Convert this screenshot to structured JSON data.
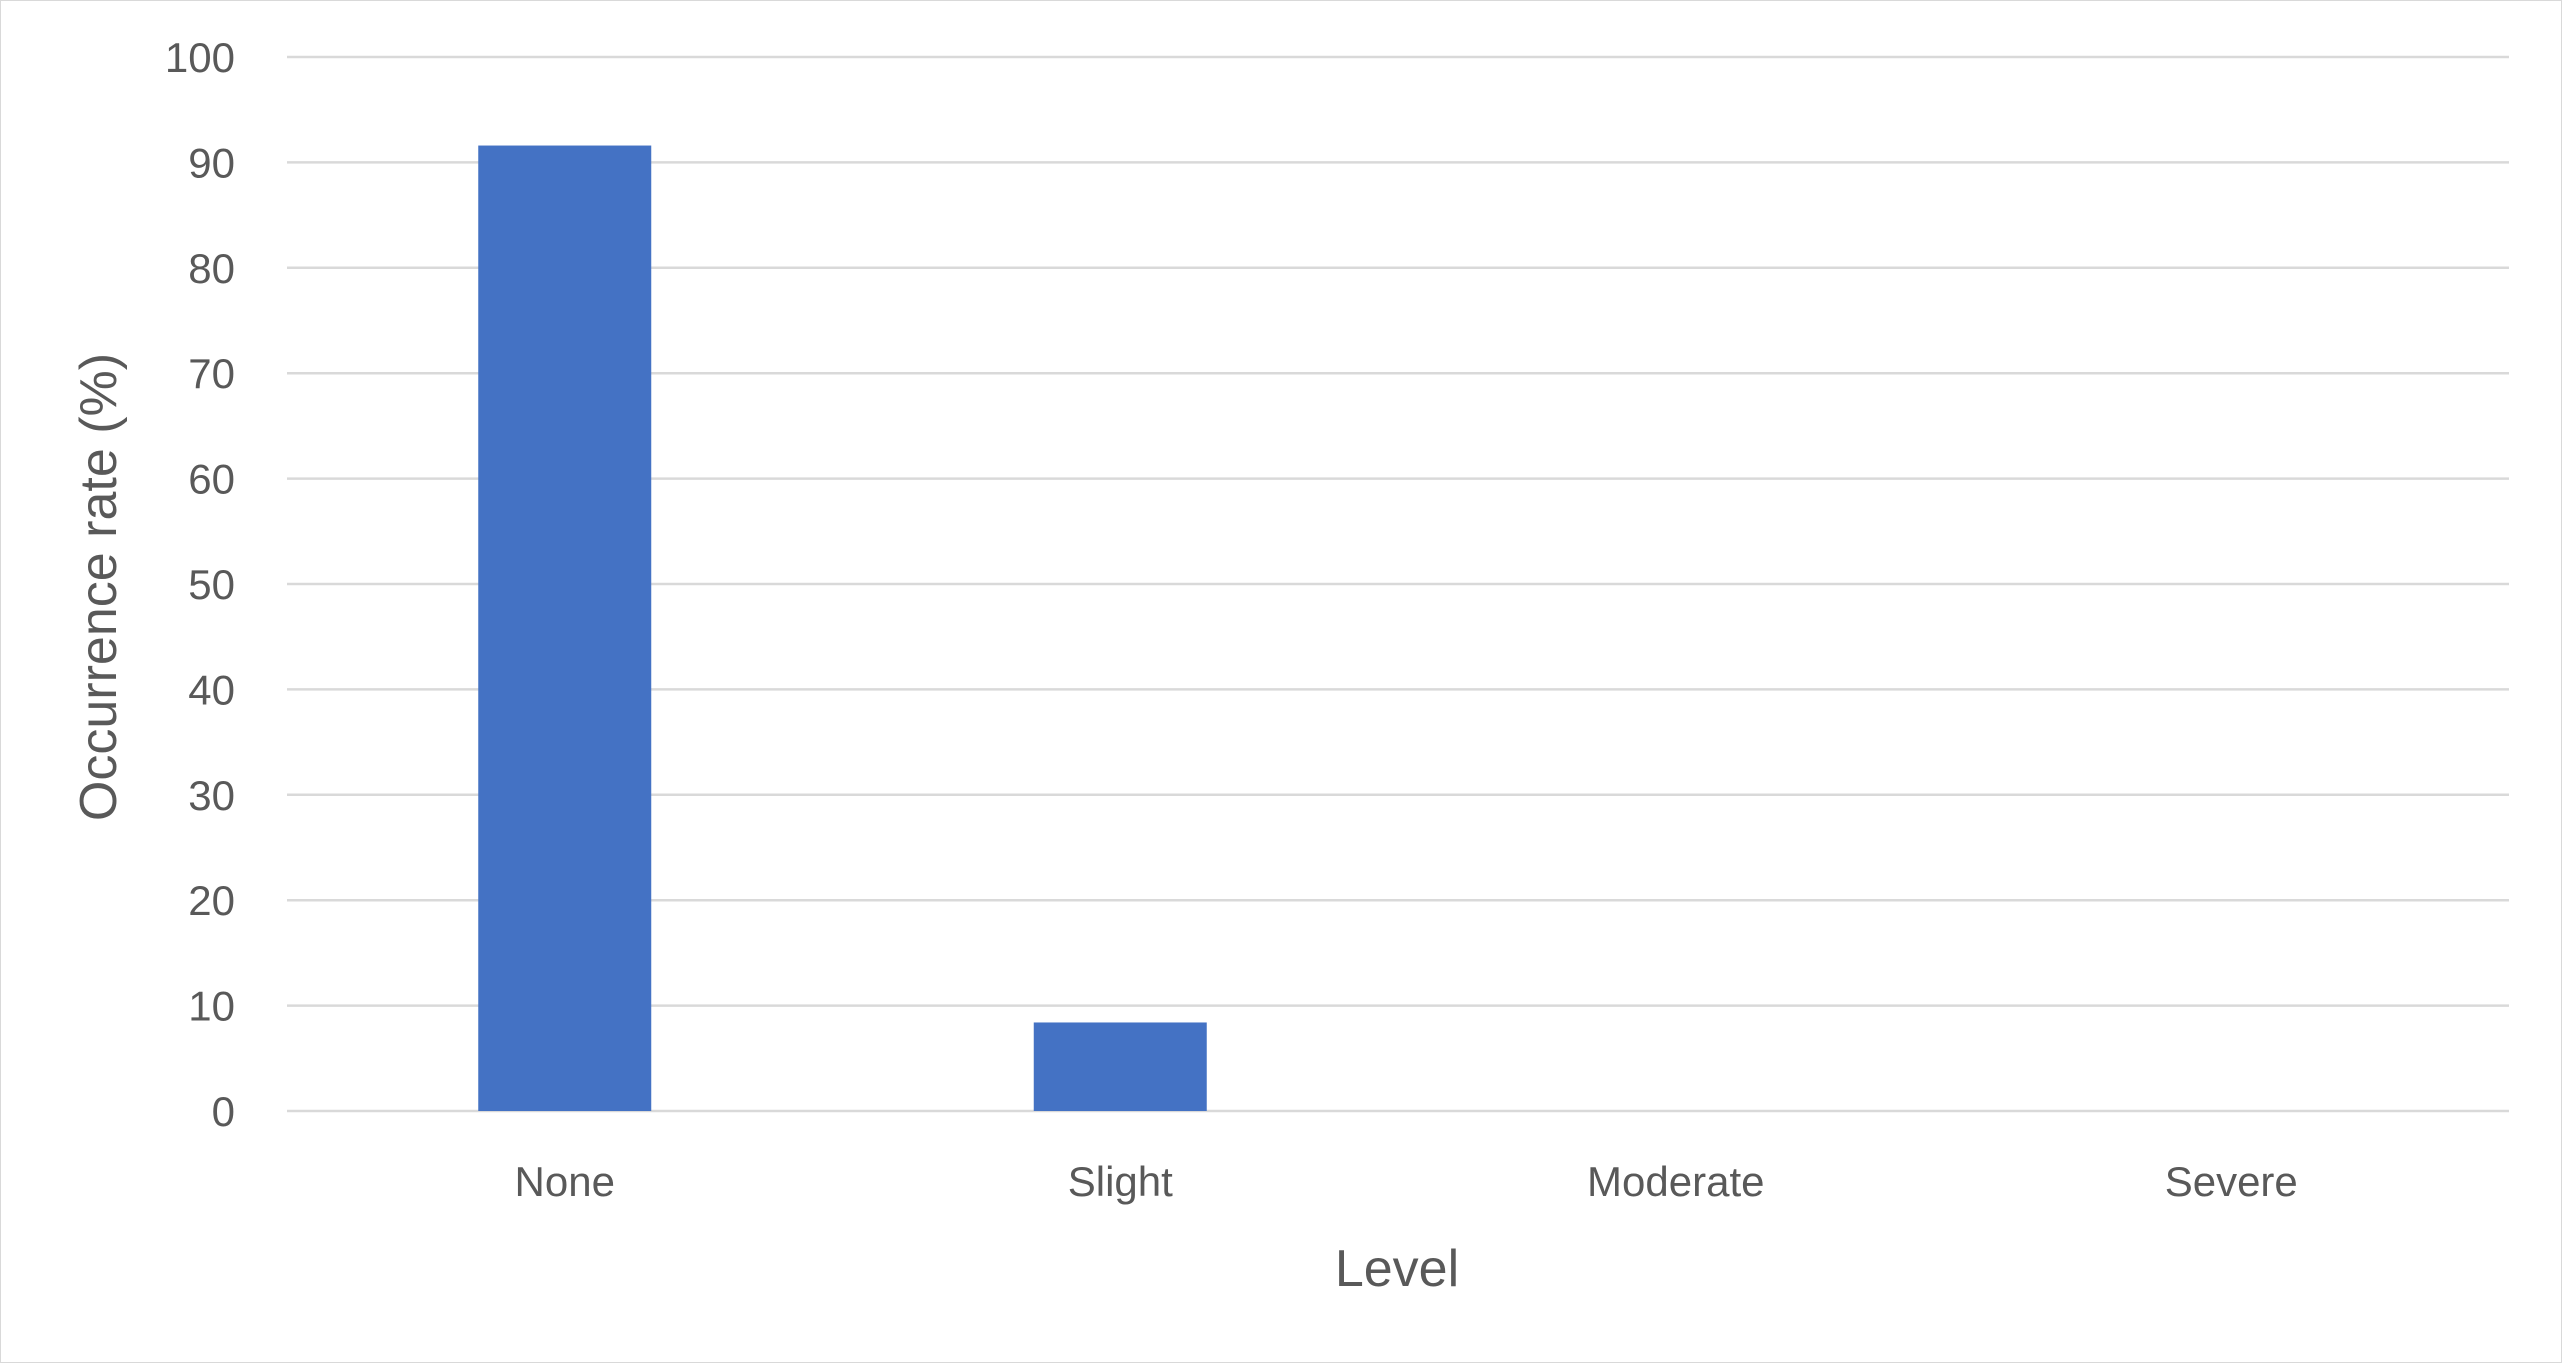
{
  "chart_data": {
    "type": "bar",
    "title": "",
    "xlabel": "Level",
    "ylabel": "Occurrence rate (%)",
    "categories": [
      "None",
      "Slight",
      "Moderate",
      "Severe"
    ],
    "values": [
      91.6,
      8.4,
      0,
      0
    ],
    "ylim": [
      0,
      100
    ],
    "yticks": [
      "0",
      "10",
      "20",
      "30",
      "40",
      "50",
      "60",
      "70",
      "80",
      "90",
      "100"
    ],
    "grid": true,
    "legend": "none",
    "colors": {
      "bar": "#4472C4",
      "gridline": "#d9d9d9",
      "text": "#595959"
    }
  }
}
